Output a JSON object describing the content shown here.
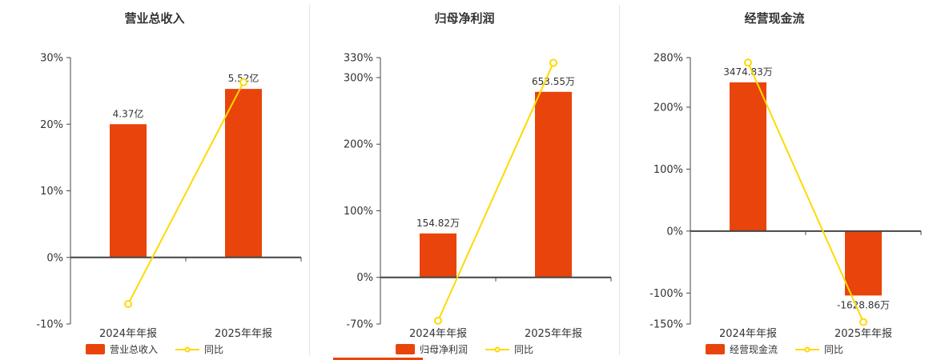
{
  "colors": {
    "bar": "#e8440b",
    "line": "#ffd900",
    "axis": "#444444",
    "text": "#333333",
    "divider": "#e2e2e2",
    "background": "#ffffff"
  },
  "chart_data": [
    {
      "type": "bar",
      "title": "营业总收入",
      "categories": [
        "2024年年报",
        "2025年年报"
      ],
      "bar_series": {
        "name": "营业总收入",
        "value_labels": [
          "4.37亿",
          "5.52亿"
        ],
        "plotted_pct": [
          20,
          25.3
        ]
      },
      "line_series": {
        "name": "同比",
        "values_pct": [
          -7.0,
          26.3
        ]
      },
      "ylim": [
        -10,
        30
      ],
      "yticks": [
        30,
        20,
        10,
        0,
        -10
      ],
      "ytick_suffix": "%",
      "grid": "off",
      "legend_position": "bottom"
    },
    {
      "type": "bar",
      "title": "归母净利润",
      "categories": [
        "2024年年报",
        "2025年年报"
      ],
      "bar_series": {
        "name": "归母净利润",
        "value_labels": [
          "154.82万",
          "653.55万"
        ],
        "plotted_pct": [
          66,
          278.6
        ]
      },
      "line_series": {
        "name": "同比",
        "values_pct": [
          -65,
          322.14
        ]
      },
      "ylim": [
        -70,
        330
      ],
      "yticks": [
        330,
        300,
        200,
        100,
        0,
        -70
      ],
      "ytick_suffix": "%",
      "grid": "off",
      "legend_position": "bottom"
    },
    {
      "type": "bar",
      "title": "经营现金流",
      "categories": [
        "2024年年报",
        "2025年年报"
      ],
      "bar_series": {
        "name": "经营现金流",
        "value_labels": [
          "3474.83万",
          "-1628.86万"
        ],
        "plotted_pct": [
          240,
          -104
        ]
      },
      "line_series": {
        "name": "同比",
        "values_pct": [
          272,
          -146.87
        ]
      },
      "ylim": [
        -150,
        280
      ],
      "yticks": [
        280,
        200,
        100,
        0,
        -100,
        -150
      ],
      "ytick_suffix": "%",
      "grid": "off",
      "legend_position": "bottom"
    }
  ]
}
